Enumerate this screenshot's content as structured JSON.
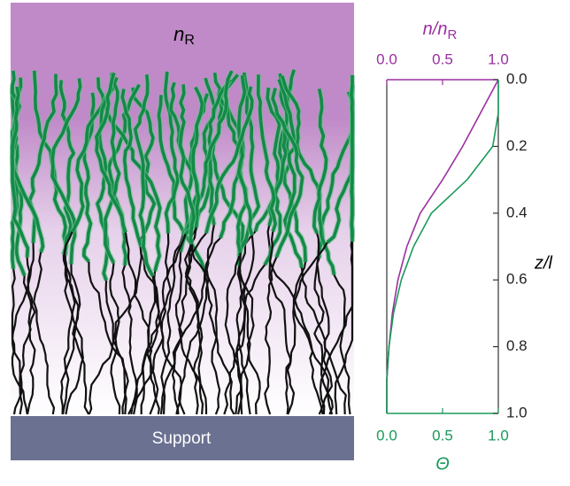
{
  "chart_data": {
    "type": "line",
    "xlabel_top": {
      "text": "n/n",
      "sub": "R"
    },
    "xlabel": "Θ",
    "ylabel": "z/l",
    "y": [
      0,
      0.1,
      0.2,
      0.3,
      0.4,
      0.5,
      0.6,
      0.7,
      0.8,
      0.9,
      1.0
    ],
    "series": [
      {
        "color": "#9b2fa0",
        "axis": "x2",
        "values": [
          1.0,
          0.84,
          0.68,
          0.5,
          0.3,
          0.18,
          0.1,
          0.05,
          0.02,
          0,
          0
        ]
      },
      {
        "color": "#1a9a5a",
        "axis": "x",
        "values": [
          1.0,
          1.0,
          0.95,
          0.72,
          0.4,
          0.24,
          0.13,
          0.06,
          0.02,
          0,
          0
        ]
      }
    ],
    "xlim": [
      0,
      1
    ],
    "x2lim": [
      0,
      1
    ],
    "ylim": [
      0,
      1
    ],
    "y_inverted": true,
    "xticks": [
      {
        "value": 0,
        "label": "0.0"
      },
      {
        "value": 0.5,
        "label": "0.5"
      },
      {
        "value": 1,
        "label": "1.0"
      }
    ],
    "x2ticks": [
      {
        "value": 0,
        "label": "0.0"
      },
      {
        "value": 0.5,
        "label": "0.5"
      },
      {
        "value": 1,
        "label": "1.0"
      }
    ],
    "yticks": [
      {
        "value": 0,
        "label": "0.0"
      },
      {
        "value": 0.2,
        "label": "0.2"
      },
      {
        "value": 0.4,
        "label": "0.4"
      },
      {
        "value": 0.6,
        "label": "0.6"
      },
      {
        "value": 0.8,
        "label": "0.8"
      },
      {
        "value": 1,
        "label": "1.0"
      }
    ]
  },
  "illustration": {
    "medium_label": {
      "text": "n",
      "sub": "R"
    },
    "support_label": "Support"
  }
}
